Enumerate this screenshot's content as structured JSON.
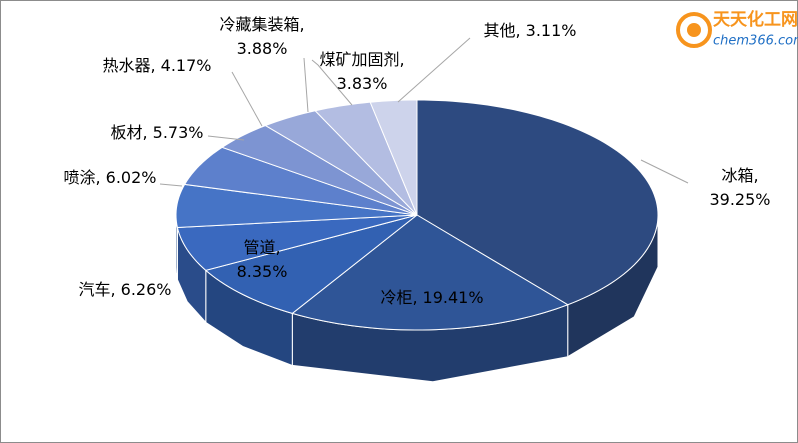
{
  "chart_data": {
    "type": "pie3d",
    "categories": [
      "冰箱",
      "冷柜",
      "管道",
      "汽车",
      "喷涂",
      "板材",
      "热水器",
      "冷藏集装箱",
      "煤矿加固剂",
      "其他"
    ],
    "values": [
      39.25,
      19.41,
      8.35,
      6.26,
      6.02,
      5.73,
      4.17,
      3.88,
      3.83,
      3.11
    ],
    "value_labels": [
      "39.25%",
      "19.41%",
      "8.35%",
      "6.26%",
      "6.02%",
      "5.73%",
      "4.17%",
      "3.88%",
      "3.83%",
      "3.11%"
    ],
    "label_separator": ",",
    "colors": [
      "#2d4a80",
      "#2f5597",
      "#3261b2",
      "#3a69bf",
      "#4674c6",
      "#5d80cc",
      "#7d94d2",
      "#98a8d9",
      "#b3bde2",
      "#cdd3eb"
    ]
  },
  "logo": {
    "title": "天天化工网",
    "url": "chem366.com"
  }
}
